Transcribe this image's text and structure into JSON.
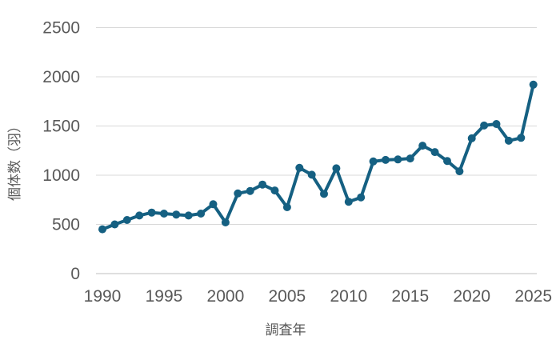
{
  "chart_data": {
    "type": "line",
    "title": "",
    "xlabel": "調査年",
    "ylabel": "個体数（羽）",
    "series_name": "個体数",
    "x": [
      1990,
      1991,
      1992,
      1993,
      1994,
      1995,
      1996,
      1997,
      1998,
      1999,
      2000,
      2001,
      2002,
      2003,
      2004,
      2005,
      2006,
      2007,
      2008,
      2009,
      2010,
      2011,
      2012,
      2013,
      2014,
      2015,
      2016,
      2017,
      2018,
      2019,
      2020,
      2021,
      2022,
      2023,
      2024,
      2025
    ],
    "values": [
      450,
      500,
      545,
      590,
      620,
      610,
      600,
      590,
      610,
      705,
      520,
      815,
      840,
      905,
      845,
      675,
      1075,
      1005,
      810,
      1070,
      730,
      775,
      1140,
      1155,
      1160,
      1170,
      1300,
      1235,
      1145,
      1040,
      1375,
      1505,
      1520,
      1350,
      1380,
      1920
    ],
    "x_ticks": [
      1990,
      1995,
      2000,
      2005,
      2010,
      2015,
      2020,
      2025
    ],
    "y_ticks": [
      0,
      500,
      1000,
      1500,
      2000,
      2500
    ],
    "xlim": [
      1990,
      2025
    ],
    "ylim": [
      0,
      2500
    ],
    "grid": "horizontal-only",
    "legend": "none",
    "marker": "circle",
    "colors": {
      "line": "#156082",
      "marker": "#156082",
      "tick_label": "#595959",
      "axis_title": "#595959",
      "gridline": "#d9d9d9",
      "axis_line": "#bfbfbf",
      "background": "#ffffff"
    }
  }
}
